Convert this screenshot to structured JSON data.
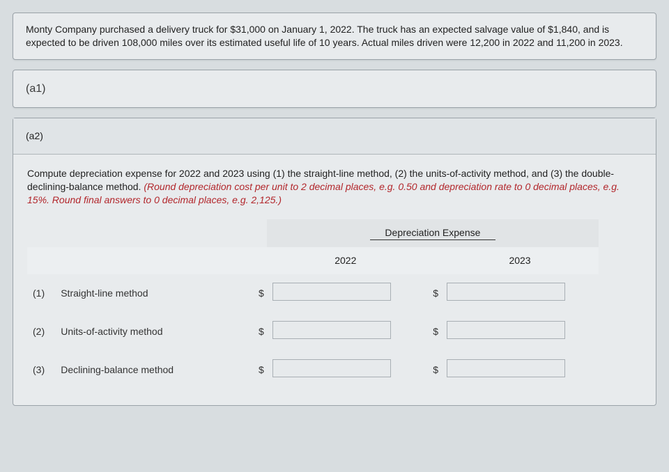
{
  "problem": {
    "text": "Monty Company purchased a delivery truck for $31,000 on January 1, 2022. The truck has an expected salvage value of $1,840, and is expected to be driven 108,000 miles over its estimated useful life of 10 years. Actual miles driven were 12,200 in 2022 and 11,200 in 2023."
  },
  "sections": {
    "a1": {
      "label": "(a1)"
    },
    "a2": {
      "label": "(a2)"
    }
  },
  "instruction": {
    "main": "Compute depreciation expense for 2022 and 2023 using (1) the straight-line method, (2) the units-of-activity method, and (3) the double-declining-balance method. ",
    "emph": "(Round depreciation cost per unit to 2 decimal places, e.g. 0.50 and depreciation rate to 0 decimal places, e.g. 15%. Round final answers to 0 decimal places, e.g. 2,125.)"
  },
  "table": {
    "header_main": "Depreciation Expense",
    "year1": "2022",
    "year2": "2023",
    "rows": [
      {
        "num": "(1)",
        "method": "Straight-line method"
      },
      {
        "num": "(2)",
        "method": "Units-of-activity method"
      },
      {
        "num": "(3)",
        "method": "Declining-balance method"
      }
    ],
    "currency": "$"
  },
  "styling": {
    "bg_page": "#d8dde0",
    "bg_card": "#e8ebed",
    "border_card": "#9aa2a8",
    "emph_color": "#b2262b",
    "link_color": "#0b2d6b",
    "font_size_base": 14,
    "input_bg": "#e7eaec",
    "input_border": "#a8afb4"
  }
}
